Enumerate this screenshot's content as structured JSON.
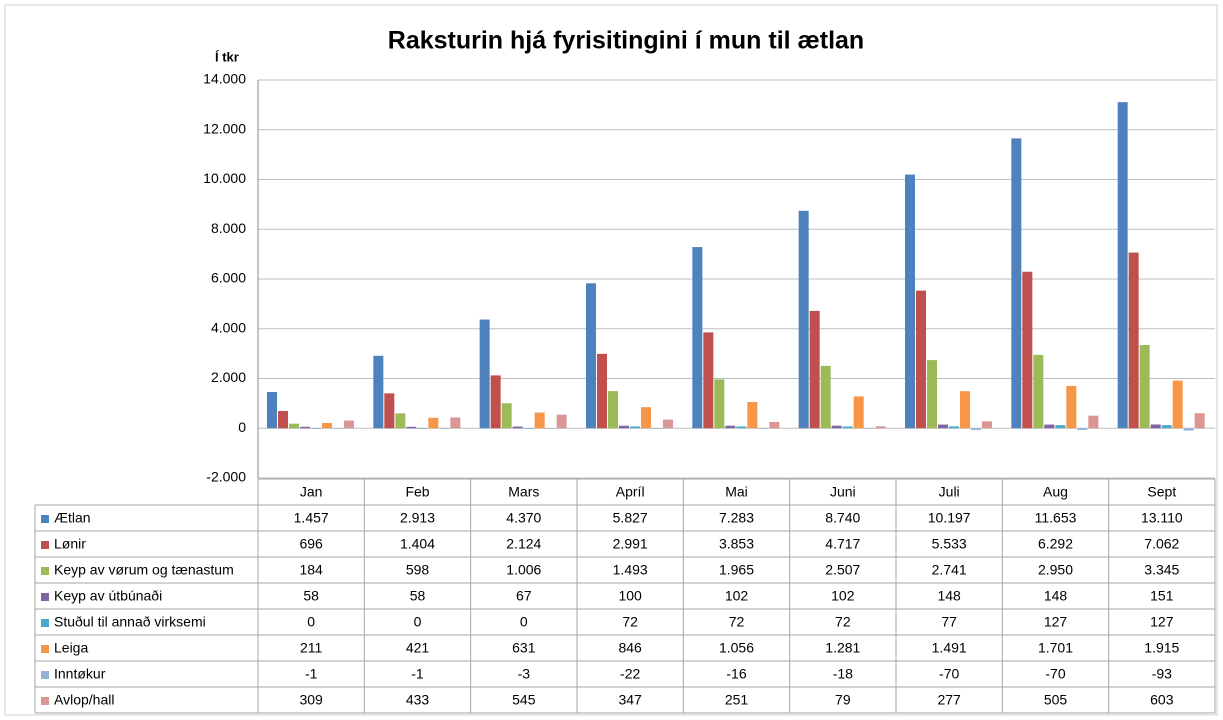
{
  "chart_data": {
    "type": "bar",
    "title": "Raksturin hjá fyrisitingini í mun til ætlan",
    "y_label": "Í tkr",
    "categories": [
      "Jan",
      "Feb",
      "Mars",
      "Apríl",
      "Mai",
      "Juni",
      "Juli",
      "Aug",
      "Sept"
    ],
    "ylim": [
      -2000,
      14000
    ],
    "yticks": [
      {
        "value": -2000,
        "label": "-2.000"
      },
      0,
      {
        "value": 2000,
        "label": "2.000"
      },
      {
        "value": 4000,
        "label": "4.000"
      },
      {
        "value": 6000,
        "label": "6.000"
      },
      {
        "value": 8000,
        "label": "8.000"
      },
      {
        "value": 10000,
        "label": "10.000"
      },
      {
        "value": 12000,
        "label": "12.000"
      },
      {
        "value": 14000,
        "label": "14.000"
      }
    ],
    "grid": true,
    "series": [
      {
        "name": "Ætlan",
        "color": "#4f81bd",
        "values": [
          1457,
          2913,
          4370,
          5827,
          7283,
          8740,
          10197,
          11653,
          13110
        ],
        "value_labels": [
          "1.457",
          "2.913",
          "4.370",
          "5.827",
          "7.283",
          "8.740",
          "10.197",
          "11.653",
          "13.110"
        ]
      },
      {
        "name": "Lønir",
        "color": "#c0504d",
        "values": [
          696,
          1404,
          2124,
          2991,
          3853,
          4717,
          5533,
          6292,
          7062
        ],
        "value_labels": [
          "696",
          "1.404",
          "2.124",
          "2.991",
          "3.853",
          "4.717",
          "5.533",
          "6.292",
          "7.062"
        ]
      },
      {
        "name": "Keyp av vørum og tænastum",
        "color": "#9bbb59",
        "values": [
          184,
          598,
          1006,
          1493,
          1965,
          2507,
          2741,
          2950,
          3345
        ],
        "value_labels": [
          "184",
          "598",
          "1.006",
          "1.493",
          "1.965",
          "2.507",
          "2.741",
          "2.950",
          "3.345"
        ]
      },
      {
        "name": "Keyp av útbúnaði",
        "color": "#8064a2",
        "values": [
          58,
          58,
          67,
          100,
          102,
          102,
          148,
          148,
          151
        ]
      },
      {
        "name": "Stuðul til annað virksemi",
        "color": "#4bacc6",
        "values": [
          0,
          0,
          0,
          72,
          72,
          72,
          77,
          127,
          127
        ]
      },
      {
        "name": "Leiga",
        "color": "#f79646",
        "values": [
          211,
          421,
          631,
          846,
          1056,
          1281,
          1491,
          1701,
          1915
        ],
        "value_labels": [
          "211",
          "421",
          "631",
          "846",
          "1.056",
          "1.281",
          "1.491",
          "1.701",
          "1.915"
        ]
      },
      {
        "name": "Inntøkur",
        "color": "#95b3d7",
        "values": [
          -1,
          -1,
          -3,
          -22,
          -16,
          -18,
          -70,
          -70,
          -93
        ]
      },
      {
        "name": "Avlop/hall",
        "color": "#d99694",
        "values": [
          309,
          433,
          545,
          347,
          251,
          79,
          277,
          505,
          603
        ]
      }
    ]
  }
}
